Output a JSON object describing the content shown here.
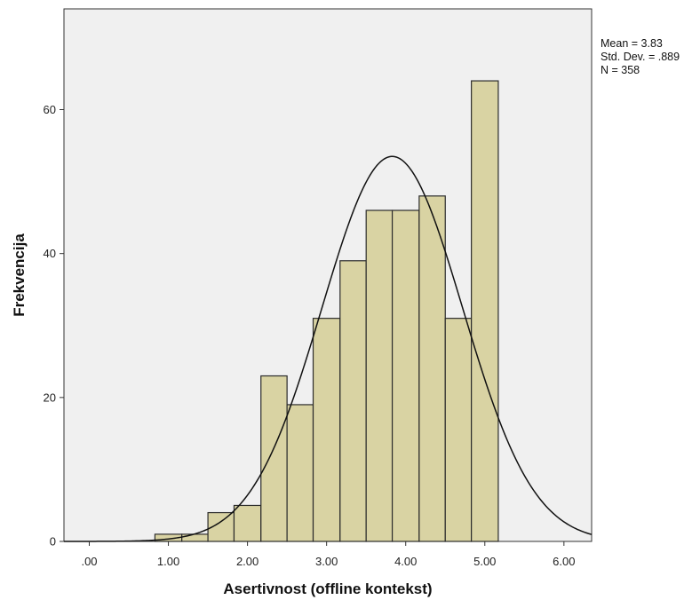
{
  "chart_data": {
    "type": "histogram",
    "xlabel": "Asertivnost (offline kontekst)",
    "ylabel": "Frekvencija",
    "xlim": [
      -0.32,
      6.35
    ],
    "ylim": [
      0,
      74
    ],
    "x_ticks": [
      0,
      1,
      2,
      3,
      4,
      5,
      6
    ],
    "x_tick_labels": [
      ".00",
      "1.00",
      "2.00",
      "3.00",
      "4.00",
      "5.00",
      "6.00"
    ],
    "y_ticks": [
      0,
      20,
      40,
      60
    ],
    "y_tick_labels": [
      "0",
      "20",
      "40",
      "60"
    ],
    "bin_width": 0.333,
    "bins": [
      {
        "start": 0.83,
        "end": 1.17,
        "count": 1
      },
      {
        "start": 1.17,
        "end": 1.5,
        "count": 1
      },
      {
        "start": 1.5,
        "end": 1.83,
        "count": 4
      },
      {
        "start": 1.83,
        "end": 2.17,
        "count": 5
      },
      {
        "start": 2.17,
        "end": 2.5,
        "count": 23
      },
      {
        "start": 2.5,
        "end": 2.83,
        "count": 19
      },
      {
        "start": 2.83,
        "end": 3.17,
        "count": 31
      },
      {
        "start": 3.17,
        "end": 3.5,
        "count": 39
      },
      {
        "start": 3.5,
        "end": 3.83,
        "count": 46
      },
      {
        "start": 3.83,
        "end": 4.17,
        "count": 46
      },
      {
        "start": 4.17,
        "end": 4.5,
        "count": 48
      },
      {
        "start": 4.5,
        "end": 4.83,
        "count": 31
      },
      {
        "start": 4.83,
        "end": 5.17,
        "count": 64
      }
    ],
    "normal_curve": {
      "mean": 3.83,
      "sd": 0.889,
      "n": 358
    },
    "stats_box": [
      "Mean = 3.83",
      "Std. Dev. = .889",
      "N = 358"
    ],
    "colors": {
      "bar_fill": "#d9d3a3",
      "bar_stroke": "#2b2b2b",
      "plot_bg": "#f0f0f0",
      "curve": "#111111"
    }
  }
}
